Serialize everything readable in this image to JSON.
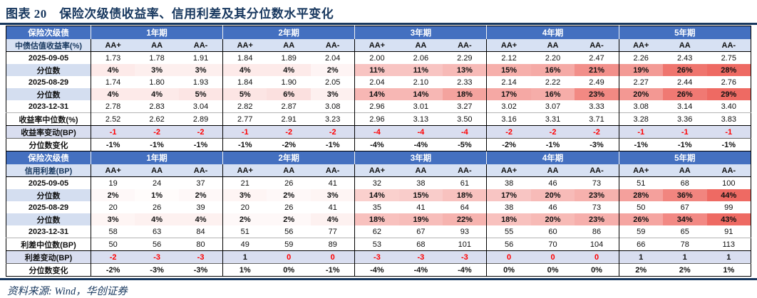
{
  "title": "图表 20　保险次级债收益率、信用利差及其分位数水平变化",
  "source": "资料来源: Wind，华创证券",
  "colors": {
    "navy_rule": "#17375E",
    "header_blue": "#4470C0",
    "header_light_blue": "#D7E1F3",
    "label_light_blue": "#D4DEF0",
    "change_row_bg": "#D9DEF0",
    "negative_red": "#FF0000",
    "heat_max_color": "#EE6A63",
    "heat_min_color": "#FFFFFF"
  },
  "ratings": [
    "AA+",
    "AA",
    "AA-"
  ],
  "groups": [
    "1年期",
    "2年期",
    "3年期",
    "4年期",
    "5年期"
  ],
  "tables": [
    {
      "corner_top": "保险次级债",
      "corner_bottom": "中债估值收益率(%)",
      "rows": [
        {
          "label": "2025-09-05",
          "type": "date",
          "values": [
            "1.73",
            "1.78",
            "1.91",
            "1.84",
            "1.89",
            "2.04",
            "2.00",
            "2.06",
            "2.29",
            "2.12",
            "2.20",
            "2.47",
            "2.26",
            "2.43",
            "2.75"
          ]
        },
        {
          "label": "分位数",
          "type": "pct",
          "values": [
            "4%",
            "3%",
            "3%",
            "4%",
            "4%",
            "2%",
            "11%",
            "11%",
            "13%",
            "15%",
            "16%",
            "21%",
            "19%",
            "26%",
            "28%"
          ]
        },
        {
          "label": "2025-08-29",
          "type": "date",
          "values": [
            "1.74",
            "1.80",
            "1.93",
            "1.84",
            "1.90",
            "2.05",
            "2.04",
            "2.10",
            "2.33",
            "2.14",
            "2.22",
            "2.49",
            "2.27",
            "2.44",
            "2.76"
          ]
        },
        {
          "label": "分位数",
          "type": "pct",
          "values": [
            "4%",
            "4%",
            "5%",
            "5%",
            "6%",
            "3%",
            "14%",
            "14%",
            "18%",
            "17%",
            "16%",
            "23%",
            "20%",
            "26%",
            "29%"
          ]
        },
        {
          "label": "2023-12-31",
          "type": "date",
          "values": [
            "2.78",
            "2.83",
            "3.04",
            "2.82",
            "2.87",
            "3.08",
            "2.96",
            "3.01",
            "3.27",
            "3.02",
            "3.07",
            "3.33",
            "3.08",
            "3.14",
            "3.40"
          ]
        },
        {
          "label": "收益率中位数(%)",
          "type": "median",
          "values": [
            "2.52",
            "2.62",
            "2.89",
            "2.77",
            "2.91",
            "3.23",
            "2.96",
            "3.13",
            "3.50",
            "3.16",
            "3.31",
            "3.71",
            "3.28",
            "3.36",
            "3.83"
          ]
        },
        {
          "label": "收益率变动(BP)",
          "type": "change",
          "values": [
            "-1",
            "-2",
            "-2",
            "-1",
            "-2",
            "-2",
            "-4",
            "-4",
            "-4",
            "-2",
            "-2",
            "-2",
            "-1",
            "-1",
            "-1"
          ]
        },
        {
          "label": "分位数变化",
          "type": "pctchange",
          "values": [
            "-1%",
            "-1%",
            "-1%",
            "-1%",
            "-2%",
            "-1%",
            "-4%",
            "-4%",
            "-5%",
            "-2%",
            "-1%",
            "-3%",
            "-1%",
            "-1%",
            "-1%"
          ]
        }
      ]
    },
    {
      "corner_top": "保险次级债",
      "corner_bottom": "信用利差(BP)",
      "rows": [
        {
          "label": "2025-09-05",
          "type": "date",
          "values": [
            "19",
            "24",
            "37",
            "21",
            "26",
            "41",
            "32",
            "38",
            "61",
            "38",
            "46",
            "73",
            "51",
            "68",
            "100"
          ]
        },
        {
          "label": "分位数",
          "type": "pct",
          "values": [
            "2%",
            "1%",
            "2%",
            "3%",
            "2%",
            "3%",
            "14%",
            "15%",
            "18%",
            "17%",
            "20%",
            "23%",
            "28%",
            "36%",
            "44%"
          ]
        },
        {
          "label": "2025-08-29",
          "type": "date",
          "values": [
            "20",
            "26",
            "39",
            "20",
            "26",
            "41",
            "35",
            "41",
            "64",
            "38",
            "46",
            "73",
            "50",
            "67",
            "99"
          ]
        },
        {
          "label": "分位数",
          "type": "pct",
          "values": [
            "3%",
            "4%",
            "4%",
            "2%",
            "2%",
            "4%",
            "18%",
            "19%",
            "22%",
            "18%",
            "20%",
            "23%",
            "26%",
            "34%",
            "43%"
          ]
        },
        {
          "label": "2023-12-31",
          "type": "date",
          "values": [
            "58",
            "63",
            "84",
            "51",
            "56",
            "77",
            "62",
            "67",
            "93",
            "55",
            "60",
            "86",
            "59",
            "65",
            "91"
          ]
        },
        {
          "label": "利差中位数(BP)",
          "type": "median",
          "values": [
            "50",
            "56",
            "80",
            "49",
            "59",
            "89",
            "53",
            "68",
            "101",
            "56",
            "70",
            "104",
            "66",
            "78",
            "113"
          ]
        },
        {
          "label": "利差变动(BP)",
          "type": "change",
          "values": [
            "-2",
            "-3",
            "-3",
            "1",
            "0",
            "0",
            "-3",
            "-3",
            "-3",
            "0",
            "0",
            "0",
            "1",
            "1",
            "1"
          ]
        },
        {
          "label": "分位数变化",
          "type": "pctchange",
          "values": [
            "-2%",
            "-3%",
            "-3%",
            "1%",
            "0%",
            "-1%",
            "-4%",
            "-4%",
            "-4%",
            "0%",
            "0%",
            "0%",
            "2%",
            "2%",
            "1%"
          ]
        }
      ]
    }
  ]
}
